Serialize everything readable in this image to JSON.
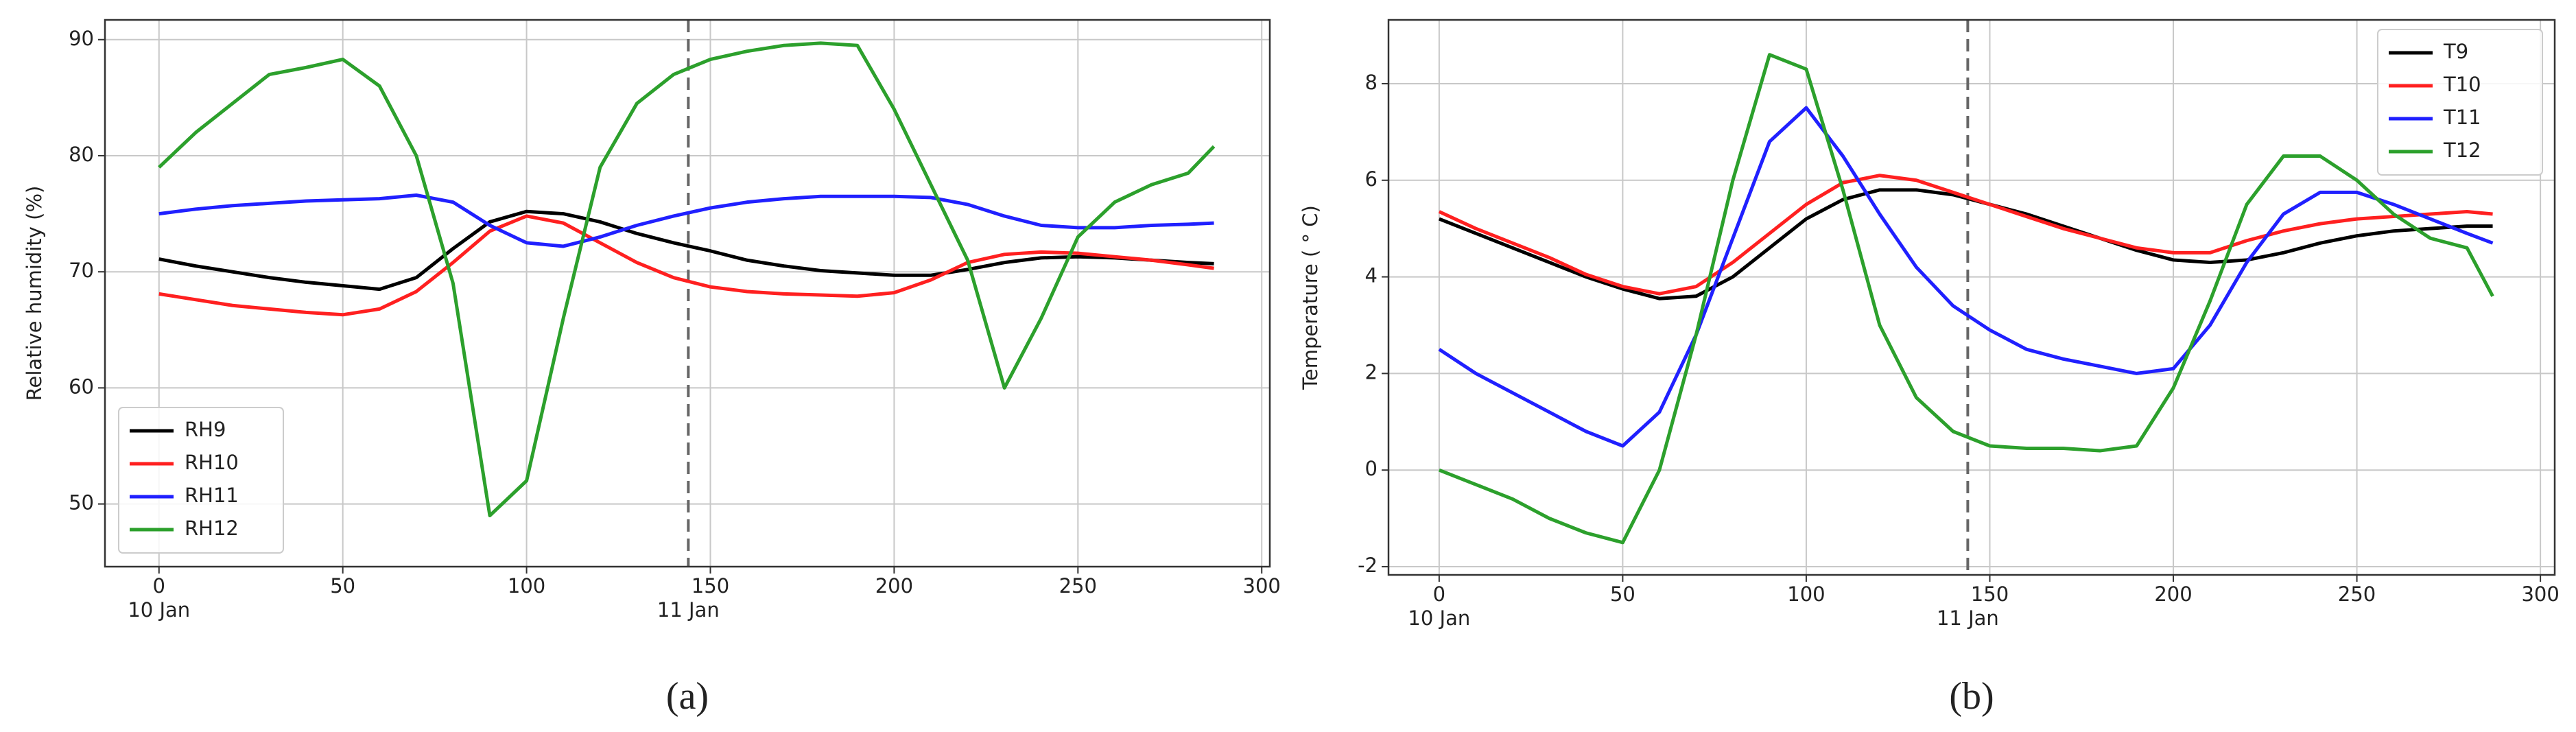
{
  "chart_data": [
    {
      "type": "line",
      "label": "(a)",
      "ylabel": "Relative humidity (%)",
      "x": [
        0,
        10,
        20,
        30,
        40,
        50,
        60,
        70,
        80,
        90,
        100,
        110,
        120,
        130,
        140,
        150,
        160,
        170,
        180,
        190,
        200,
        210,
        220,
        230,
        240,
        250,
        260,
        270,
        280,
        287
      ],
      "series": [
        {
          "name": "RH9",
          "color": "#000000",
          "values": [
            71.1,
            70.5,
            70,
            69.5,
            69.1,
            68.8,
            68.5,
            69.5,
            72,
            74.3,
            75.2,
            75,
            74.3,
            73.3,
            72.5,
            71.8,
            71,
            70.5,
            70.1,
            69.9,
            69.7,
            69.7,
            70.2,
            70.8,
            71.2,
            71.3,
            71.2,
            71,
            70.8,
            70.7
          ]
        },
        {
          "name": "RH10",
          "color": "#ff2020",
          "values": [
            68.1,
            67.6,
            67.1,
            66.8,
            66.5,
            66.3,
            66.8,
            68.3,
            70.8,
            73.5,
            74.8,
            74.2,
            72.5,
            70.8,
            69.5,
            68.7,
            68.3,
            68.1,
            68,
            67.9,
            68.2,
            69.3,
            70.8,
            71.5,
            71.7,
            71.6,
            71.3,
            71,
            70.6,
            70.3
          ]
        },
        {
          "name": "RH11",
          "color": "#2020ff",
          "values": [
            75,
            75.4,
            75.7,
            75.9,
            76.1,
            76.2,
            76.3,
            76.6,
            76,
            74,
            72.5,
            72.2,
            73,
            74,
            74.8,
            75.5,
            76,
            76.3,
            76.5,
            76.5,
            76.5,
            76.4,
            75.8,
            74.8,
            74,
            73.8,
            73.8,
            74,
            74.1,
            74.2
          ]
        },
        {
          "name": "RH12",
          "color": "#2ca02c",
          "values": [
            79,
            82,
            84.5,
            87,
            87.6,
            88.3,
            86,
            80,
            69,
            49,
            52,
            66,
            79,
            84.5,
            87,
            88.3,
            89,
            89.5,
            89.7,
            89.5,
            84,
            77.5,
            71,
            60,
            66,
            73,
            76,
            77.5,
            78.5,
            80.8
          ]
        }
      ],
      "xlim": [
        -14.7,
        302.2
      ],
      "ylim": [
        44.6,
        91.7
      ],
      "xticks": [
        0,
        50,
        100,
        150,
        200,
        250,
        300
      ],
      "yticks": [
        50,
        60,
        70,
        80,
        90
      ],
      "grid": true,
      "legend": "lower left",
      "vline": 144,
      "annotations": [
        {
          "x": 0,
          "text": "10 Jan"
        },
        {
          "x": 144,
          "text": "11 Jan"
        }
      ]
    },
    {
      "type": "line",
      "label": "(b)",
      "ylabel": "Temperature ( ° C)",
      "x": [
        0,
        10,
        20,
        30,
        40,
        50,
        60,
        70,
        80,
        90,
        100,
        110,
        120,
        130,
        140,
        150,
        160,
        170,
        180,
        190,
        200,
        210,
        220,
        230,
        240,
        250,
        260,
        270,
        280,
        287
      ],
      "series": [
        {
          "name": "T9",
          "color": "#000000",
          "values": [
            5.2,
            4.9,
            4.6,
            4.3,
            4.0,
            3.75,
            3.55,
            3.6,
            4.0,
            4.6,
            5.2,
            5.6,
            5.8,
            5.8,
            5.7,
            5.5,
            5.3,
            5.05,
            4.8,
            4.55,
            4.35,
            4.3,
            4.35,
            4.5,
            4.7,
            4.85,
            4.95,
            5.0,
            5.05,
            5.05
          ]
        },
        {
          "name": "T10",
          "color": "#ff2020",
          "values": [
            5.35,
            5.0,
            4.7,
            4.4,
            4.05,
            3.8,
            3.65,
            3.8,
            4.3,
            4.9,
            5.5,
            5.95,
            6.1,
            6.0,
            5.75,
            5.5,
            5.25,
            5.0,
            4.8,
            4.6,
            4.5,
            4.5,
            4.75,
            4.95,
            5.1,
            5.2,
            5.25,
            5.3,
            5.35,
            5.3
          ]
        },
        {
          "name": "T11",
          "color": "#2020ff",
          "values": [
            2.5,
            2.0,
            1.6,
            1.2,
            0.8,
            0.5,
            1.2,
            2.8,
            4.8,
            6.8,
            7.5,
            6.5,
            5.3,
            4.2,
            3.4,
            2.9,
            2.5,
            2.3,
            2.15,
            2.0,
            2.1,
            3.0,
            4.3,
            5.3,
            5.75,
            5.75,
            5.5,
            5.2,
            4.9,
            4.7
          ]
        },
        {
          "name": "T12",
          "color": "#2ca02c",
          "values": [
            0,
            -0.3,
            -0.6,
            -1.0,
            -1.3,
            -1.5,
            0,
            2.8,
            6.0,
            8.6,
            8.3,
            5.8,
            3.0,
            1.5,
            0.8,
            0.5,
            0.45,
            0.45,
            0.4,
            0.5,
            1.7,
            3.5,
            5.5,
            6.5,
            6.5,
            6.0,
            5.3,
            4.8,
            4.6,
            3.6
          ]
        }
      ],
      "xlim": [
        -13.8,
        303.9
      ],
      "ylim": [
        -2.17,
        9.32
      ],
      "xticks": [
        0,
        50,
        100,
        150,
        200,
        250,
        300
      ],
      "yticks": [
        -2,
        0,
        2,
        4,
        6,
        8
      ],
      "grid": true,
      "legend": "upper right",
      "vline": 144,
      "annotations": [
        {
          "x": 0,
          "text": "10 Jan"
        },
        {
          "x": 144,
          "text": "11 Jan"
        }
      ]
    }
  ]
}
